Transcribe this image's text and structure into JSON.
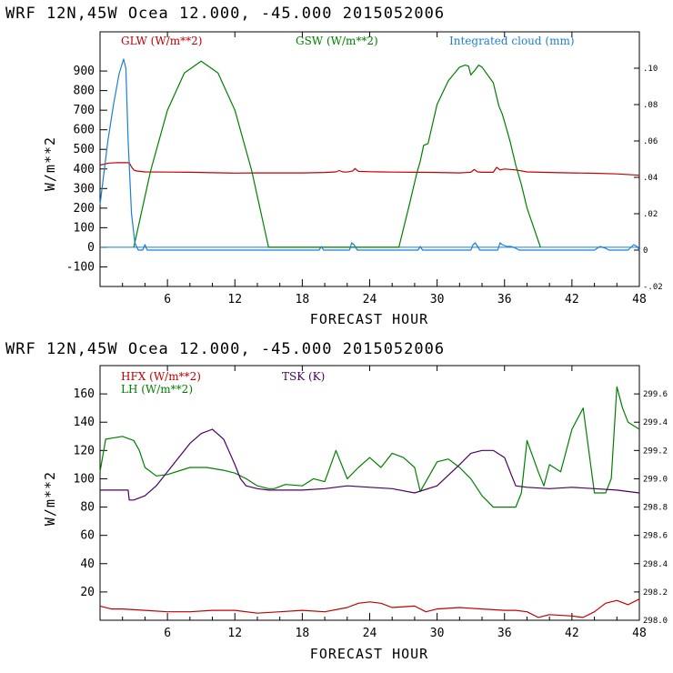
{
  "chart_data": [
    {
      "type": "line",
      "title": "WRF  12N,45W Ocea  12.000, -45.000  2015052006",
      "xlabel": "FORECAST HOUR",
      "ylabel": "W/m**2",
      "xlim": [
        0,
        48
      ],
      "ylim": [
        -200,
        1100
      ],
      "y2lim": [
        -0.02,
        0.12
      ],
      "x_ticks": [
        "6",
        "12",
        "18",
        "24",
        "30",
        "36",
        "42",
        "48"
      ],
      "y_ticks": [
        "-100",
        "0",
        "100",
        "200",
        "300",
        "400",
        "500",
        "600",
        "700",
        "800",
        "900"
      ],
      "y2_ticks": [
        "-.02",
        "0",
        ".02",
        ".04",
        ".06",
        ".08",
        ".10"
      ],
      "zero_line": 0,
      "series": [
        {
          "name": "GLW (W/m**2)",
          "color": "#c00000",
          "axis": "left",
          "x": [
            0,
            0.8,
            1.5,
            2.6,
            2.8,
            3.0,
            3.2,
            4,
            6,
            8,
            10,
            12,
            14,
            16,
            18,
            20,
            21,
            21.3,
            21.6,
            22,
            22.5,
            22.7,
            23,
            24,
            25,
            26,
            28,
            30,
            32,
            33,
            33.3,
            33.6,
            34,
            35,
            35.3,
            35.6,
            36,
            37,
            38,
            40,
            42,
            44,
            46,
            48
          ],
          "y": [
            420,
            430,
            432,
            432,
            410,
            395,
            390,
            385,
            384,
            383,
            381,
            379,
            380,
            380,
            380,
            382,
            385,
            392,
            385,
            384,
            390,
            402,
            388,
            386,
            385,
            384,
            383,
            382,
            380,
            383,
            397,
            385,
            383,
            383,
            408,
            395,
            400,
            395,
            385,
            382,
            380,
            378,
            375,
            368
          ]
        },
        {
          "name": "GSW (W/m**2)",
          "color": "#008000",
          "axis": "left",
          "x": [
            3,
            4.5,
            6,
            7.5,
            9,
            10.5,
            12,
            13.5,
            15,
            26.6,
            27.5,
            28.2,
            28.5,
            28.8,
            29.2,
            30,
            31,
            32,
            32.5,
            32.8,
            33,
            33.3,
            33.7,
            34,
            35,
            35.5,
            35.8,
            36,
            36.5,
            37,
            37.5,
            38,
            39.2
          ],
          "y": [
            0,
            390,
            700,
            890,
            950,
            890,
            700,
            390,
            0,
            0,
            210,
            380,
            440,
            520,
            530,
            730,
            850,
            920,
            930,
            925,
            880,
            900,
            930,
            920,
            840,
            720,
            680,
            640,
            540,
            420,
            320,
            200,
            0
          ]
        },
        {
          "name": "Integrated cloud (mm)",
          "color": "#1a7fd6",
          "axis": "right",
          "x": [
            0,
            0.3,
            0.7,
            1.2,
            1.7,
            2.1,
            2.3,
            2.5,
            2.8,
            3.1,
            3.4,
            3.8,
            4.0,
            4.2,
            4.6,
            5,
            19.5,
            19.7,
            19.9,
            20.2,
            22.2,
            22.4,
            22.6,
            22.9,
            28.3,
            28.5,
            28.7,
            33,
            33.2,
            33.4,
            33.6,
            33.8,
            35.4,
            35.6,
            35.8,
            36.2,
            36.6,
            37,
            37.3,
            44,
            44.5,
            45,
            45.3,
            46,
            47,
            47.5,
            47.8,
            48
          ],
          "y": [
            0.025,
            0.04,
            0.06,
            0.08,
            0.097,
            0.105,
            0.1,
            0.06,
            0.02,
            0.004,
            0,
            0,
            0.003,
            0,
            0,
            0,
            0,
            0.002,
            0,
            0,
            0,
            0.004,
            0.003,
            0,
            0,
            0.002,
            0,
            0,
            0.003,
            0.004,
            0.002,
            0,
            0,
            0.004,
            0.003,
            0.002,
            0.002,
            0.001,
            0,
            0,
            0.002,
            0.001,
            0,
            0,
            0,
            0.003,
            0.002,
            0
          ]
        }
      ]
    },
    {
      "type": "line",
      "title": "WRF  12N,45W Ocea  12.000, -45.000  2015052006",
      "xlabel": "FORECAST HOUR",
      "ylabel": "W/m**2",
      "xlim": [
        0,
        48
      ],
      "ylim": [
        0,
        180
      ],
      "y2lim": [
        298.0,
        299.8
      ],
      "x_ticks": [
        "6",
        "12",
        "18",
        "24",
        "30",
        "36",
        "42",
        "48"
      ],
      "y_ticks": [
        "20",
        "40",
        "60",
        "80",
        "100",
        "120",
        "140",
        "160"
      ],
      "y2_ticks": [
        "298.0",
        "298.2",
        "298.4",
        "298.6",
        "298.8",
        "299.0",
        "299.2",
        "299.4",
        "299.6"
      ],
      "series": [
        {
          "name": "HFX (W/m**2)",
          "color": "#c00000",
          "axis": "left",
          "x": [
            0,
            1,
            2,
            4,
            6,
            8,
            10,
            12,
            14,
            16,
            18,
            20,
            22,
            23,
            24,
            25,
            26,
            28,
            29,
            30,
            32,
            34,
            36,
            37,
            38,
            39,
            40,
            42,
            43,
            44,
            45,
            46,
            47,
            48
          ],
          "y": [
            10,
            8,
            8,
            7,
            6,
            6,
            7,
            7,
            5,
            6,
            7,
            6,
            9,
            12,
            13,
            12,
            9,
            10,
            6,
            8,
            9,
            8,
            7,
            7,
            6,
            2,
            4,
            3,
            2,
            6,
            12,
            14,
            11,
            15
          ]
        },
        {
          "name": "LH (W/m**2)",
          "color": "#008000",
          "axis": "left",
          "x": [
            0,
            0.5,
            2,
            3,
            3.5,
            4,
            5,
            6,
            8,
            9.5,
            11,
            12,
            13,
            14,
            15,
            15.5,
            16.5,
            18,
            19,
            20,
            21,
            22,
            23,
            24,
            25,
            26,
            27,
            28,
            28.5,
            30,
            31,
            32,
            33,
            34,
            35,
            36,
            37,
            37.5,
            38,
            39,
            39.5,
            40,
            41,
            42,
            43,
            44,
            45,
            45.5,
            46,
            46.5,
            47,
            48
          ],
          "y": [
            105,
            128,
            130,
            127,
            120,
            108,
            102,
            103,
            108,
            108,
            106,
            104,
            100,
            95,
            93,
            93,
            96,
            95,
            100,
            98,
            120,
            100,
            108,
            115,
            108,
            118,
            115,
            108,
            91,
            112,
            114,
            108,
            100,
            88,
            80,
            80,
            80,
            90,
            127,
            105,
            95,
            110,
            105,
            135,
            150,
            90,
            90,
            100,
            165,
            150,
            140,
            135
          ]
        },
        {
          "name": "TSK (K)",
          "color": "#4b0060",
          "axis": "right",
          "x": [
            0,
            2.5,
            2.6,
            3,
            4,
            5,
            6,
            7,
            8,
            9,
            10,
            11,
            12,
            12.5,
            13,
            14,
            15,
            16,
            18,
            20,
            22,
            24,
            26,
            28,
            30,
            32,
            33,
            34,
            35,
            36,
            36.5,
            37,
            38,
            40,
            42,
            44,
            46,
            48
          ],
          "y": [
            298.92,
            298.92,
            298.85,
            298.85,
            298.88,
            298.95,
            299.05,
            299.15,
            299.25,
            299.32,
            299.35,
            299.28,
            299.1,
            299.0,
            298.95,
            298.93,
            298.92,
            298.92,
            298.92,
            298.93,
            298.95,
            298.94,
            298.93,
            298.9,
            298.95,
            299.1,
            299.18,
            299.2,
            299.2,
            299.15,
            299.05,
            298.95,
            298.94,
            298.93,
            298.94,
            298.93,
            298.92,
            298.9
          ]
        }
      ]
    }
  ]
}
